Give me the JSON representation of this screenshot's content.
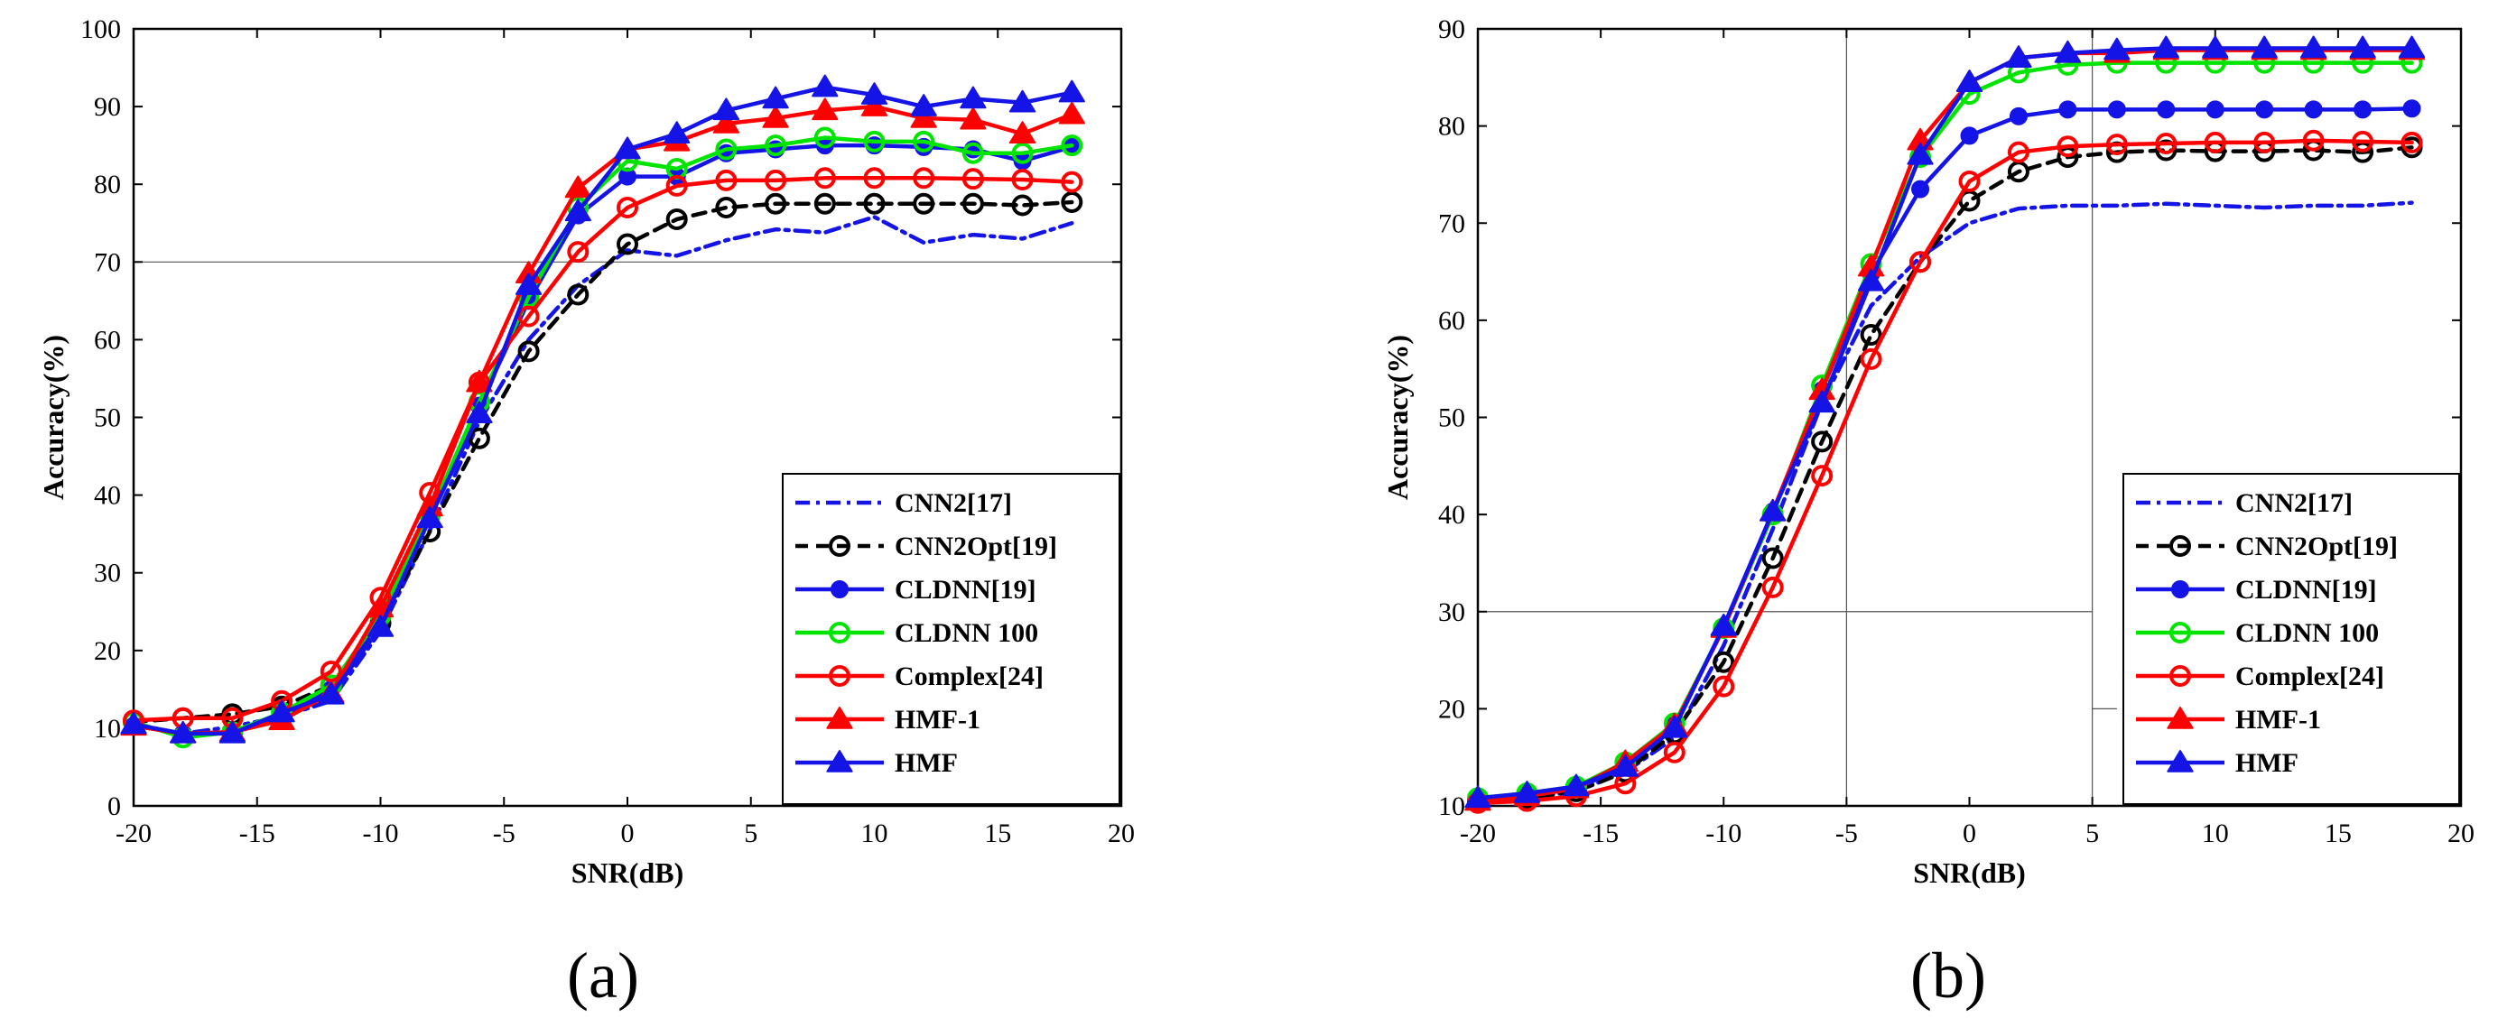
{
  "series_styles": [
    {
      "name": "CNN2[17]",
      "color": "#1414e6",
      "dash": "dashdot",
      "marker": "none"
    },
    {
      "name": "CNN2Opt[19]",
      "color": "#000000",
      "dash": "dash",
      "marker": "circle-open"
    },
    {
      "name": "CLDNN[19]",
      "color": "#1414e6",
      "dash": "solid",
      "marker": "dot"
    },
    {
      "name": "CLDNN 100",
      "color": "#00e400",
      "dash": "solid",
      "marker": "circle-open"
    },
    {
      "name": "Complex[24]",
      "color": "#ff0000",
      "dash": "solid",
      "marker": "circle-open"
    },
    {
      "name": "HMF-1",
      "color": "#ff0000",
      "dash": "solid",
      "marker": "triangle"
    },
    {
      "name": "HMF",
      "color": "#1414e6",
      "dash": "solid",
      "marker": "triangle"
    }
  ],
  "chart_data": [
    {
      "type": "line",
      "caption": "(a)",
      "xlabel": "SNR(dB)",
      "ylabel": "Accuracy(%)",
      "xlim": [
        -20,
        20
      ],
      "ylim": [
        0,
        100
      ],
      "xticks": [
        -20,
        -15,
        -10,
        -5,
        0,
        5,
        10,
        15,
        20
      ],
      "yticks": [
        0,
        10,
        20,
        30,
        40,
        50,
        60,
        70,
        80,
        90,
        100
      ],
      "legend_position": "bottom-right",
      "reference_lines": [
        {
          "orientation": "horizontal",
          "value": 70
        }
      ],
      "x": [
        -20,
        -18,
        -16,
        -14,
        -12,
        -10,
        -8,
        -6,
        -4,
        -2,
        0,
        2,
        4,
        6,
        8,
        10,
        12,
        14,
        16,
        18
      ],
      "series": [
        {
          "name": "CNN2[17]",
          "values": [
            10.5,
            9.3,
            10.2,
            11.5,
            13.5,
            22.5,
            35.5,
            49.5,
            60,
            67,
            71.5,
            70.8,
            72.8,
            74.2,
            73.8,
            75.8,
            72.5,
            73.5,
            73,
            75
          ]
        },
        {
          "name": "CNN2Opt[19]",
          "values": [
            10.8,
            11.3,
            11.8,
            12.8,
            15.5,
            23.5,
            35.3,
            47.3,
            58.5,
            65.8,
            72.3,
            75.5,
            77,
            77.5,
            77.5,
            77.5,
            77.5,
            77.5,
            77.3,
            77.7
          ]
        },
        {
          "name": "CLDNN[19]",
          "values": [
            10.3,
            9.3,
            9.5,
            11.5,
            15,
            24,
            37,
            51.5,
            65,
            76,
            81,
            81,
            84,
            84.5,
            85,
            85,
            84.8,
            84.5,
            83,
            84.8
          ]
        },
        {
          "name": "CLDNN 100",
          "values": [
            10.8,
            8.8,
            9.5,
            12,
            15.5,
            24.5,
            37.5,
            52,
            65.5,
            77,
            83,
            82,
            84.5,
            85,
            86,
            85.5,
            85.5,
            84,
            84,
            85
          ]
        },
        {
          "name": "Complex[24]",
          "values": [
            11,
            11.3,
            11.3,
            13.5,
            17.3,
            26.8,
            40.3,
            54.5,
            63,
            71.3,
            77,
            79.8,
            80.5,
            80.5,
            80.8,
            80.8,
            80.8,
            80.7,
            80.6,
            80.3
          ]
        },
        {
          "name": "HMF-1",
          "values": [
            10.3,
            9.3,
            9.5,
            11,
            14.5,
            25.5,
            38.5,
            54.5,
            68.5,
            79.5,
            84.5,
            85.5,
            87.8,
            88.5,
            89.5,
            90,
            88.5,
            88.3,
            86.5,
            89
          ]
        },
        {
          "name": "HMF",
          "values": [
            10.5,
            9.3,
            9.3,
            12,
            14.3,
            23,
            37,
            50.5,
            67,
            76.5,
            84.5,
            86.5,
            89.5,
            91,
            92.5,
            91.5,
            90,
            91,
            90.5,
            91.8
          ]
        }
      ]
    },
    {
      "type": "line",
      "caption": "(b)",
      "xlabel": "SNR(dB)",
      "ylabel": "Accuracy(%)",
      "xlim": [
        -20,
        20
      ],
      "ylim": [
        10,
        90
      ],
      "xticks": [
        -20,
        -15,
        -10,
        -5,
        0,
        5,
        10,
        15,
        20
      ],
      "yticks": [
        10,
        20,
        30,
        40,
        50,
        60,
        70,
        80,
        90
      ],
      "legend_position": "bottom-right",
      "reference_lines": [
        {
          "orientation": "horizontal",
          "value": 30,
          "x_from": -20,
          "x_to": 5
        },
        {
          "orientation": "vertical",
          "value": -5
        },
        {
          "orientation": "vertical",
          "value": 5
        },
        {
          "orientation": "horizontal",
          "value": 20,
          "x_from": 5,
          "x_to": 6
        }
      ],
      "x": [
        -20,
        -18,
        -16,
        -14,
        -12,
        -10,
        -8,
        -6,
        -4,
        -2,
        0,
        2,
        4,
        6,
        8,
        10,
        12,
        14,
        16,
        18
      ],
      "series": [
        {
          "name": "CNN2[17]",
          "values": [
            10.3,
            10.8,
            11.5,
            13.5,
            17,
            26.5,
            38.5,
            51.5,
            61.5,
            66.5,
            70,
            71.5,
            71.8,
            71.8,
            72,
            71.8,
            71.6,
            71.8,
            71.8,
            72.1
          ]
        },
        {
          "name": "CNN2Opt[19]",
          "values": [
            10.5,
            10.8,
            11.5,
            13.5,
            17.5,
            24.8,
            35.5,
            47.5,
            58.5,
            66,
            72.3,
            75.3,
            76.8,
            77.3,
            77.5,
            77.4,
            77.4,
            77.5,
            77.3,
            77.8
          ]
        },
        {
          "name": "CLDNN[19]",
          "values": [
            10.5,
            11,
            11.8,
            14,
            18.3,
            28.3,
            40.3,
            52.8,
            64.8,
            73.5,
            79,
            81,
            81.7,
            81.7,
            81.7,
            81.7,
            81.7,
            81.7,
            81.7,
            81.8
          ]
        },
        {
          "name": "CLDNN 100",
          "values": [
            10.8,
            11.3,
            12,
            14.5,
            18.5,
            28.3,
            40,
            53.3,
            65.8,
            76.8,
            83.3,
            85.5,
            86.3,
            86.5,
            86.5,
            86.5,
            86.5,
            86.5,
            86.5,
            86.5
          ]
        },
        {
          "name": "Complex[24]",
          "values": [
            10.3,
            10.5,
            11,
            12.3,
            15.5,
            22.3,
            32.5,
            44,
            56,
            66,
            74.3,
            77.3,
            77.9,
            78.1,
            78.2,
            78.3,
            78.3,
            78.5,
            78.4,
            78.3
          ]
        },
        {
          "name": "HMF-1",
          "values": [
            10.5,
            11,
            11.8,
            14.5,
            18.3,
            28.3,
            40.3,
            52.8,
            65.5,
            78.5,
            84.5,
            87,
            87.5,
            87.5,
            87.8,
            87.8,
            87.8,
            87.8,
            87.8,
            87.8
          ]
        },
        {
          "name": "HMF",
          "values": [
            10.8,
            11.3,
            12,
            14,
            18,
            28.5,
            40.3,
            51.5,
            64,
            77,
            84.5,
            87,
            87.5,
            87.8,
            88,
            88,
            88,
            88,
            88,
            88
          ]
        }
      ]
    }
  ]
}
